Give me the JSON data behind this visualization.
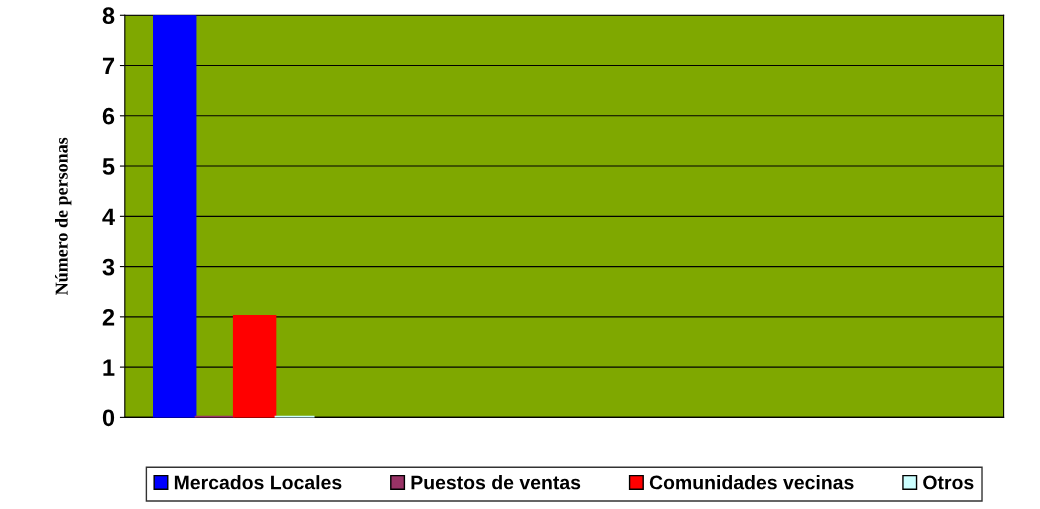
{
  "chart_data": {
    "type": "bar",
    "ylabel": "Número de personas",
    "categories": [
      null
    ],
    "series": [
      {
        "name": "Mercados Locales",
        "color": "#0000ff",
        "values": [
          8
        ]
      },
      {
        "name": "Puestos de ventas",
        "color": "#993366",
        "values": [
          0
        ]
      },
      {
        "name": "Comunidades vecinas",
        "color": "#ff0000",
        "values": [
          2
        ]
      },
      {
        "name": "Otros",
        "color": "#ccffff",
        "values": [
          0
        ]
      }
    ],
    "ylim": [
      0,
      8
    ],
    "yticks": [
      0,
      1,
      2,
      3,
      4,
      5,
      6,
      7,
      8
    ],
    "grid": "y",
    "legend": "bottom"
  }
}
